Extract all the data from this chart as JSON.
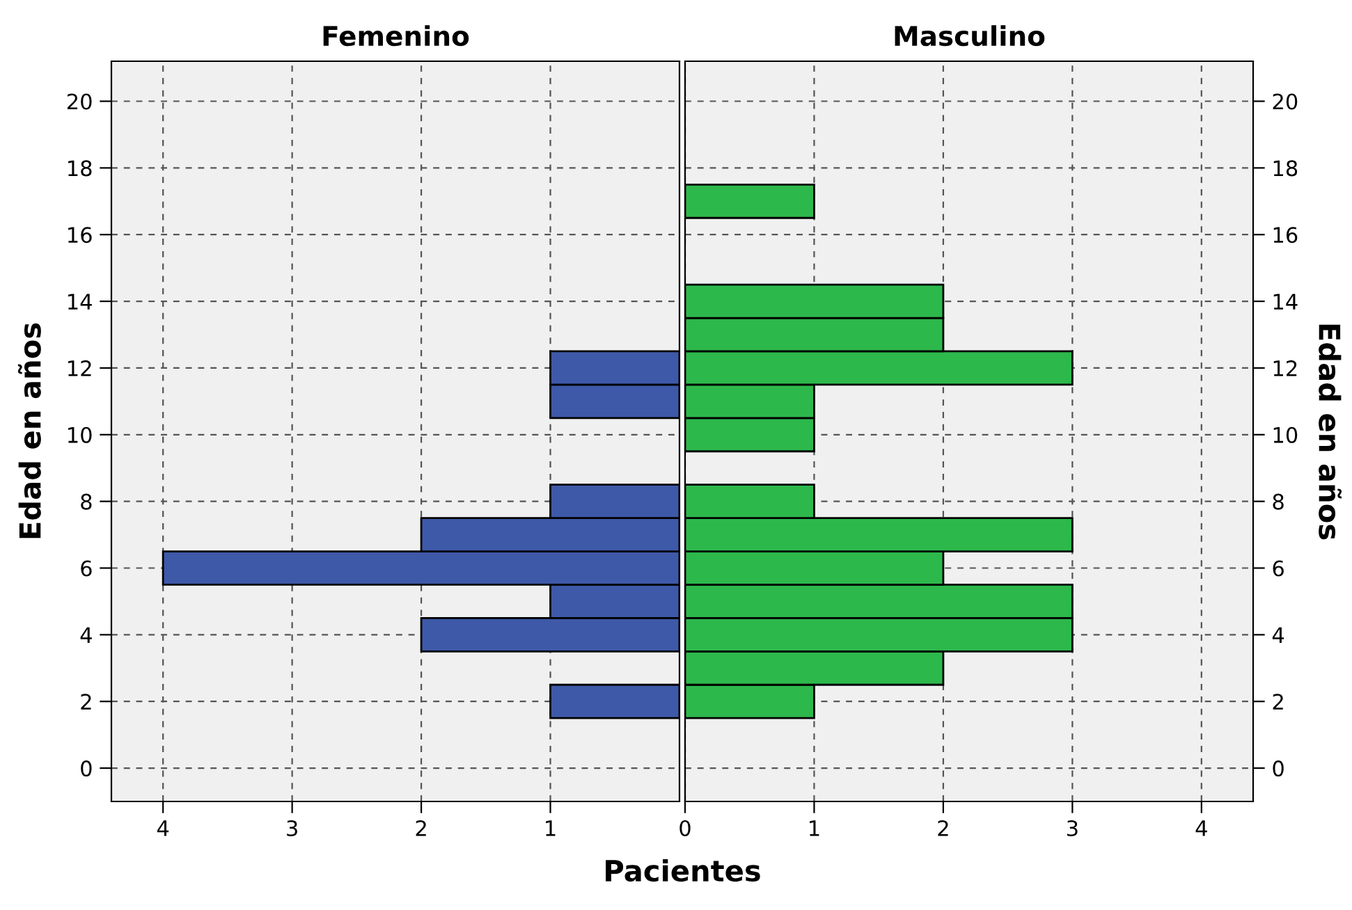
{
  "chart_data": [
    {
      "type": "histogram",
      "orientation": "horizontal",
      "title": "Femenino",
      "ylabel": "Edad en años",
      "xlabel": "Pacientes",
      "bins": [
        1.5,
        2.5,
        3.5,
        4.5,
        5.5,
        6.5,
        7.5,
        8.5,
        9.5,
        10.5,
        11.5,
        12.5,
        13.5,
        14.5,
        15.5,
        16.5,
        17.5
      ],
      "values": [
        1,
        0,
        2,
        1,
        4,
        2,
        1,
        0,
        0,
        1,
        1,
        0,
        0,
        0,
        0,
        0
      ],
      "color": "#3e59a8",
      "xlim": [
        4.4,
        0
      ],
      "xticks": [
        4,
        3,
        2,
        1
      ],
      "ylim": [
        -1,
        21.2
      ],
      "yticks": [
        0,
        2,
        4,
        6,
        8,
        10,
        12,
        14,
        16,
        18,
        20
      ],
      "grid": true
    },
    {
      "type": "histogram",
      "orientation": "horizontal",
      "title": "Masculino",
      "ylabel": "Edad en años",
      "bins": [
        1.5,
        2.5,
        3.5,
        4.5,
        5.5,
        6.5,
        7.5,
        8.5,
        9.5,
        10.5,
        11.5,
        12.5,
        13.5,
        14.5,
        15.5,
        16.5,
        17.5
      ],
      "values": [
        1,
        2,
        3,
        3,
        2,
        3,
        1,
        0,
        1,
        1,
        3,
        2,
        2,
        0,
        0,
        1
      ],
      "color": "#2db84c",
      "xlim": [
        0,
        4.4
      ],
      "xticks": [
        0,
        1,
        2,
        3,
        4
      ],
      "ylim": [
        -1,
        21.2
      ],
      "yticks": [
        0,
        2,
        4,
        6,
        8,
        10,
        12,
        14,
        16,
        18,
        20
      ],
      "grid": true
    }
  ]
}
